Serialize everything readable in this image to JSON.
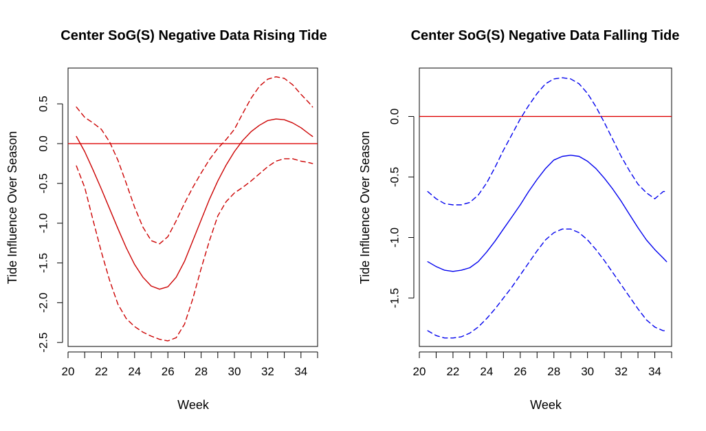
{
  "chart_data": [
    {
      "type": "line",
      "title": "Center SoG(S) Negative Data Rising Tide",
      "xlabel": "Week",
      "ylabel": "Tide Influence Over Season",
      "xlim": [
        20,
        35
      ],
      "ylim": [
        -2.55,
        0.95
      ],
      "x_ticks": [
        "20",
        "22",
        "24",
        "26",
        "28",
        "30",
        "32",
        "34"
      ],
      "y_ticks": [
        "-2.5",
        "-2.0",
        "-1.5",
        "-1.0",
        "-0.5",
        "0.0",
        "0.5"
      ],
      "color": "#cc0000",
      "reference_line": 0,
      "series": [
        {
          "style": "solid",
          "x": [
            20.5,
            21,
            21.5,
            22,
            22.5,
            23,
            23.5,
            24,
            24.5,
            25,
            25.5,
            26,
            26.5,
            27,
            27.5,
            28,
            28.5,
            29,
            29.5,
            30,
            30.5,
            31,
            31.5,
            32,
            32.5,
            33,
            33.5,
            34,
            34.5,
            34.7
          ],
          "y": [
            0.09,
            -0.1,
            -0.33,
            -0.57,
            -0.82,
            -1.07,
            -1.31,
            -1.52,
            -1.68,
            -1.79,
            -1.83,
            -1.8,
            -1.68,
            -1.48,
            -1.22,
            -0.96,
            -0.7,
            -0.47,
            -0.27,
            -0.1,
            0.04,
            0.15,
            0.23,
            0.29,
            0.31,
            0.3,
            0.26,
            0.2,
            0.12,
            0.09
          ]
        },
        {
          "style": "dashed",
          "x": [
            20.5,
            21,
            21.5,
            22,
            22.5,
            23,
            23.5,
            24,
            24.5,
            25,
            25.5,
            26,
            26.5,
            27,
            27.5,
            28,
            28.5,
            29,
            29.5,
            30,
            30.5,
            31,
            31.5,
            32,
            32.5,
            33,
            33.5,
            34,
            34.5,
            34.7
          ],
          "y": [
            0.46,
            0.33,
            0.26,
            0.18,
            0.02,
            -0.21,
            -0.5,
            -0.8,
            -1.05,
            -1.22,
            -1.26,
            -1.17,
            -0.97,
            -0.75,
            -0.55,
            -0.37,
            -0.2,
            -0.06,
            0.05,
            0.18,
            0.38,
            0.57,
            0.72,
            0.81,
            0.84,
            0.82,
            0.74,
            0.62,
            0.51,
            0.46
          ]
        },
        {
          "style": "dashed",
          "x": [
            20.5,
            21,
            21.5,
            22,
            22.5,
            23,
            23.5,
            24,
            24.5,
            25,
            25.5,
            26,
            26.5,
            27,
            27.5,
            28,
            28.5,
            29,
            29.5,
            30,
            30.5,
            31,
            31.5,
            32,
            32.5,
            33,
            33.5,
            34,
            34.5,
            34.7
          ],
          "y": [
            -0.28,
            -0.55,
            -0.96,
            -1.36,
            -1.72,
            -2.02,
            -2.2,
            -2.3,
            -2.37,
            -2.42,
            -2.46,
            -2.48,
            -2.44,
            -2.27,
            -1.95,
            -1.57,
            -1.22,
            -0.91,
            -0.73,
            -0.62,
            -0.55,
            -0.47,
            -0.38,
            -0.29,
            -0.22,
            -0.19,
            -0.19,
            -0.22,
            -0.24,
            -0.25
          ]
        }
      ]
    },
    {
      "type": "line",
      "title": "Center SoG(S) Negative Data Falling Tide",
      "xlabel": "Week",
      "ylabel": "Tide Influence Over Season",
      "xlim": [
        20,
        35
      ],
      "ylim": [
        -1.9,
        0.4
      ],
      "x_ticks": [
        "20",
        "22",
        "24",
        "26",
        "28",
        "30",
        "32",
        "34"
      ],
      "y_ticks": [
        "-1.5",
        "-1.0",
        "-0.5",
        "0.0"
      ],
      "color": "#0000ee",
      "reference_line": 0,
      "series": [
        {
          "style": "solid",
          "x": [
            20.5,
            21,
            21.5,
            22,
            22.5,
            23,
            23.5,
            24,
            24.5,
            25,
            25.5,
            26,
            26.5,
            27,
            27.5,
            28,
            28.5,
            29,
            29.5,
            30,
            30.5,
            31,
            31.5,
            32,
            32.5,
            33,
            33.5,
            34,
            34.5,
            34.7
          ],
          "y": [
            -1.2,
            -1.24,
            -1.27,
            -1.28,
            -1.27,
            -1.25,
            -1.2,
            -1.12,
            -1.03,
            -0.93,
            -0.83,
            -0.73,
            -0.62,
            -0.52,
            -0.43,
            -0.36,
            -0.33,
            -0.32,
            -0.33,
            -0.37,
            -0.43,
            -0.51,
            -0.6,
            -0.7,
            -0.81,
            -0.92,
            -1.02,
            -1.1,
            -1.17,
            -1.2
          ]
        },
        {
          "style": "dashed",
          "x": [
            20.5,
            21,
            21.5,
            22,
            22.5,
            23,
            23.5,
            24,
            24.5,
            25,
            25.5,
            26,
            26.5,
            27,
            27.5,
            28,
            28.5,
            29,
            29.5,
            30,
            30.5,
            31,
            31.5,
            32,
            32.5,
            33,
            33.5,
            34,
            34.5,
            34.7
          ],
          "y": [
            -0.62,
            -0.68,
            -0.72,
            -0.73,
            -0.73,
            -0.71,
            -0.65,
            -0.55,
            -0.42,
            -0.28,
            -0.15,
            -0.02,
            0.09,
            0.19,
            0.27,
            0.31,
            0.32,
            0.31,
            0.27,
            0.19,
            0.08,
            -0.05,
            -0.19,
            -0.33,
            -0.45,
            -0.56,
            -0.63,
            -0.68,
            -0.62,
            -0.62
          ]
        },
        {
          "style": "dashed",
          "x": [
            20.5,
            21,
            21.5,
            22,
            22.5,
            23,
            23.5,
            24,
            24.5,
            25,
            25.5,
            26,
            26.5,
            27,
            27.5,
            28,
            28.5,
            29,
            29.5,
            30,
            30.5,
            31,
            31.5,
            32,
            32.5,
            33,
            33.5,
            34,
            34.5,
            34.7
          ],
          "y": [
            -1.77,
            -1.81,
            -1.83,
            -1.83,
            -1.82,
            -1.79,
            -1.74,
            -1.67,
            -1.59,
            -1.5,
            -1.41,
            -1.31,
            -1.21,
            -1.11,
            -1.02,
            -0.96,
            -0.93,
            -0.93,
            -0.96,
            -1.02,
            -1.1,
            -1.19,
            -1.29,
            -1.39,
            -1.49,
            -1.59,
            -1.68,
            -1.74,
            -1.77,
            -1.77
          ]
        }
      ]
    }
  ]
}
